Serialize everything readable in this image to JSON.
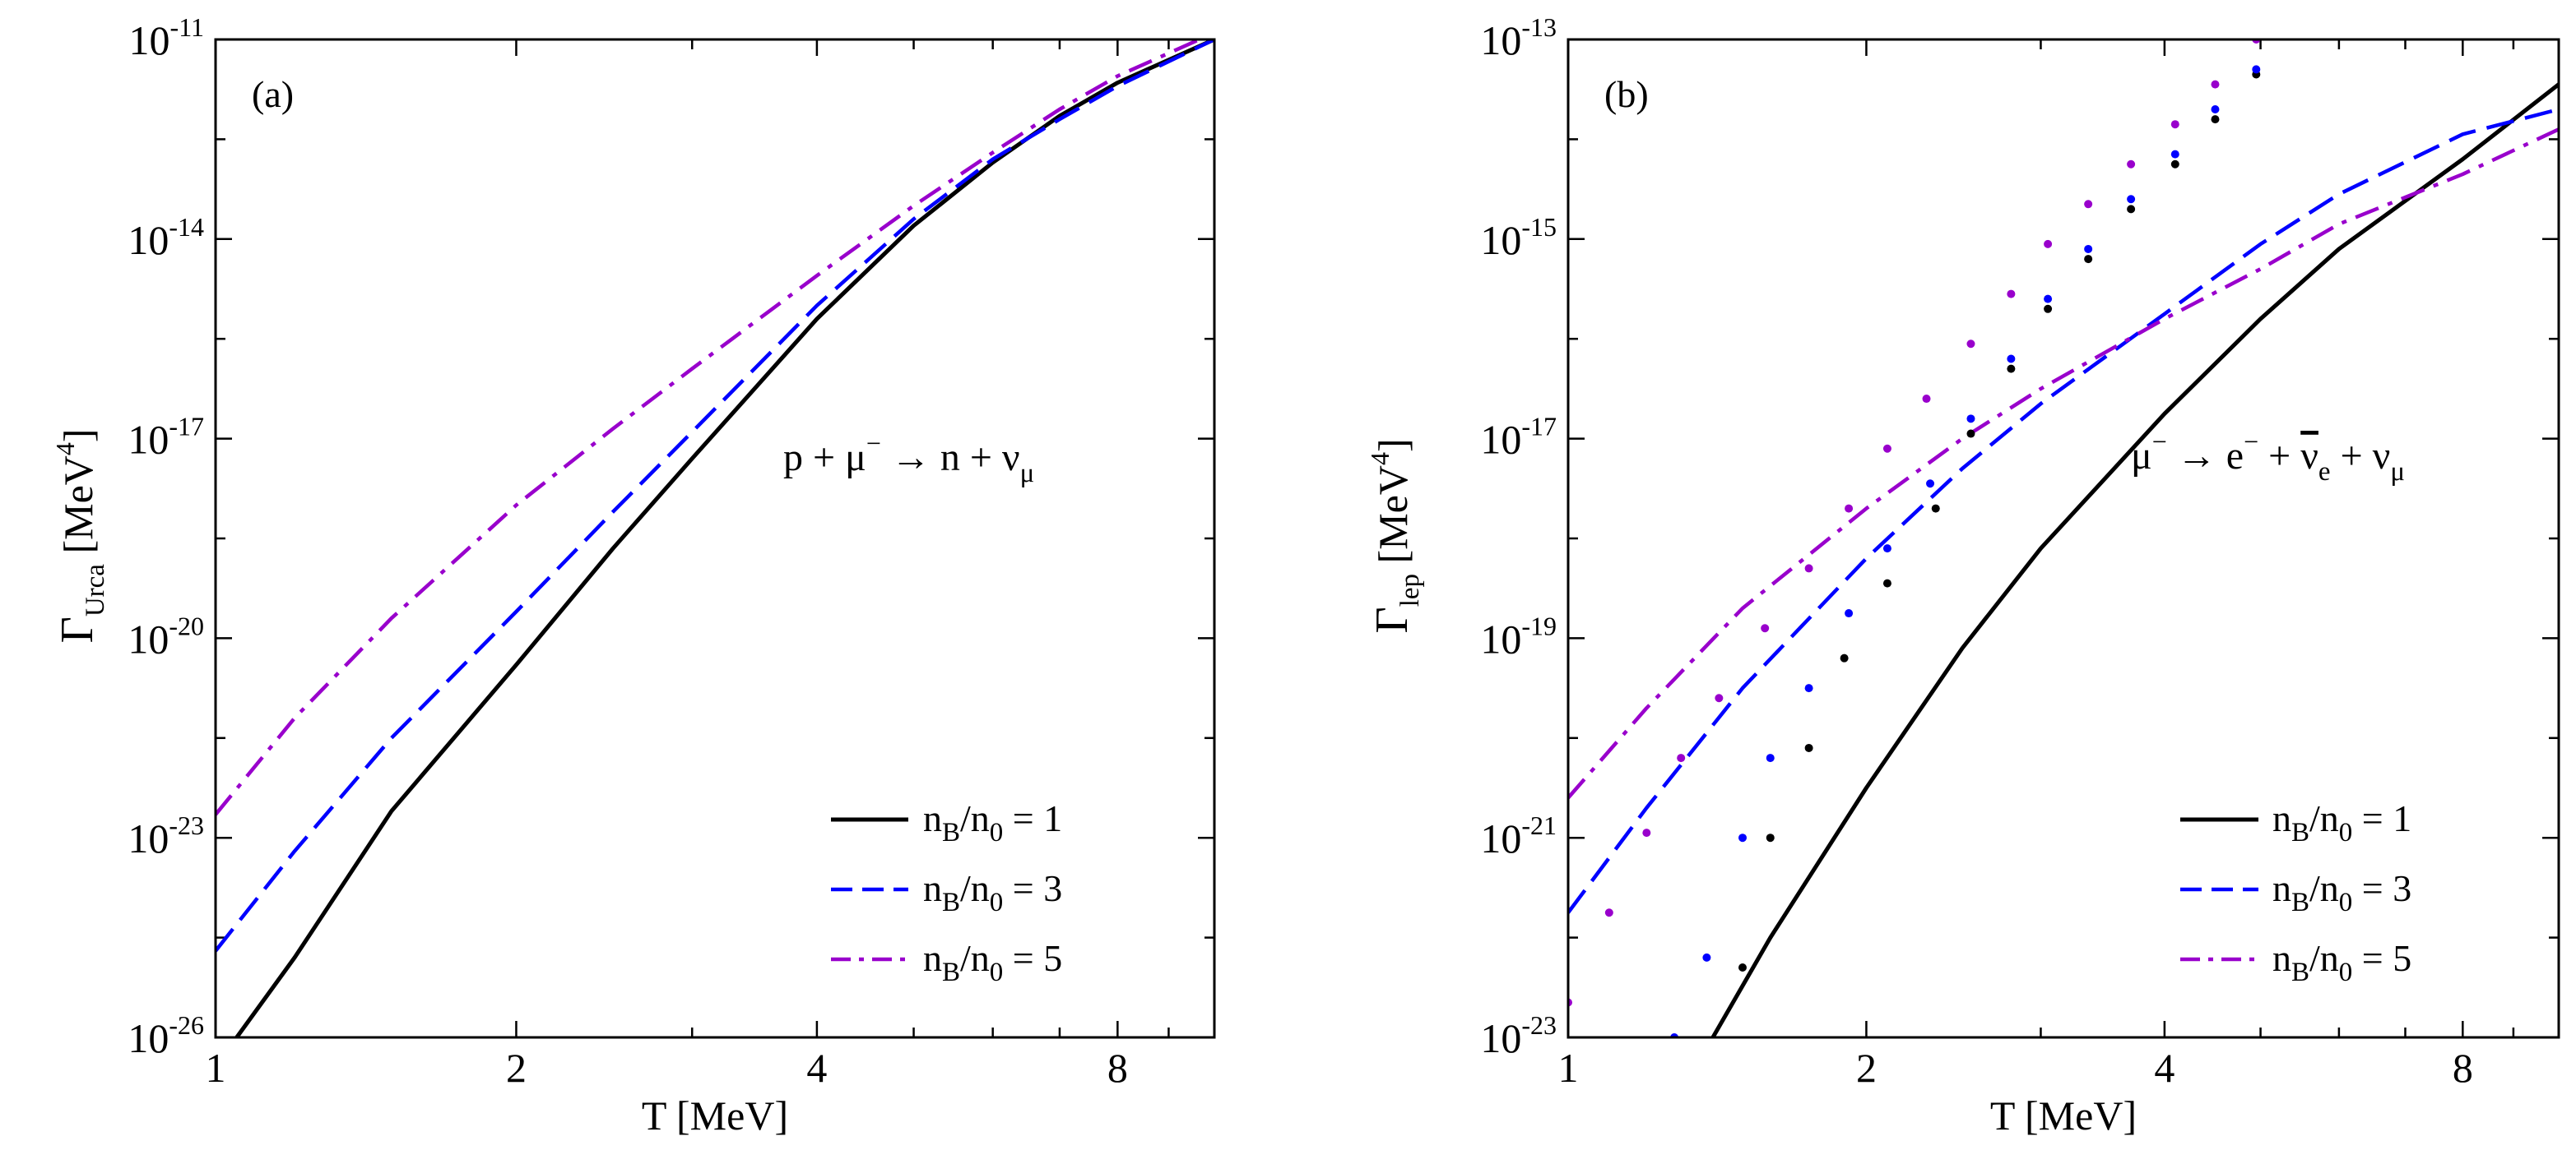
{
  "chart_data": [
    {
      "panel": "(a)",
      "type": "line",
      "title": "",
      "x_scale": "log",
      "y_scale": "log",
      "xlim": [
        1,
        10
      ],
      "ylim_exponent": [
        -26,
        -11
      ],
      "xlabel": "T [MeV]",
      "ylabel": {
        "base": "Γ",
        "sub": "Urca",
        "unit_pre": " [MeV",
        "unit_sup": "4",
        "unit_post": "]"
      },
      "xticks": [
        1,
        2,
        4,
        8
      ],
      "xtick_labels": [
        "1",
        "2",
        "4",
        "8"
      ],
      "yticks_exponent": [
        -26,
        -23,
        -20,
        -17,
        -14,
        -11
      ],
      "ytick_labels": [
        {
          "base": "10",
          "exp": "-26"
        },
        {
          "base": "10",
          "exp": "-23"
        },
        {
          "base": "10",
          "exp": "-20"
        },
        {
          "base": "10",
          "exp": "-17"
        },
        {
          "base": "10",
          "exp": "-14"
        },
        {
          "base": "10",
          "exp": "-11"
        }
      ],
      "annotation": {
        "text_parts": [
          "p + μ",
          "−",
          " → n + ν",
          "μ"
        ]
      },
      "legend_position": "bottom-right",
      "series": [
        {
          "name": "n_B/n_0 = 1",
          "label_parts": [
            "n",
            "B",
            "/n",
            "0",
            " = 1"
          ],
          "color": "#000000",
          "dash": "solid",
          "points": [
            [
              1.05,
              -26.0
            ],
            [
              1.2,
              -24.8
            ],
            [
              1.5,
              -22.6
            ],
            [
              2.0,
              -20.4
            ],
            [
              2.5,
              -18.65
            ],
            [
              3.0,
              -17.3
            ],
            [
              4.0,
              -15.2
            ],
            [
              5.0,
              -13.8
            ],
            [
              6.0,
              -12.85
            ],
            [
              7.0,
              -12.15
            ],
            [
              8.0,
              -11.65
            ],
            [
              10.0,
              -11.0
            ]
          ]
        },
        {
          "name": "n_B/n_0 = 3",
          "label_parts": [
            "n",
            "B",
            "/n",
            "0",
            " = 3"
          ],
          "color": "#0000ff",
          "dash": "dashed",
          "points": [
            [
              1.0,
              -24.7
            ],
            [
              1.2,
              -23.2
            ],
            [
              1.5,
              -21.5
            ],
            [
              2.0,
              -19.6
            ],
            [
              2.5,
              -18.1
            ],
            [
              3.0,
              -16.9
            ],
            [
              4.0,
              -15.0
            ],
            [
              5.0,
              -13.7
            ],
            [
              6.0,
              -12.8
            ],
            [
              7.0,
              -12.2
            ],
            [
              8.0,
              -11.7
            ],
            [
              10.0,
              -11.0
            ]
          ]
        },
        {
          "name": "n_B/n_0 = 5",
          "label_parts": [
            "n",
            "B",
            "/n",
            "0",
            " = 5"
          ],
          "color": "#9900cc",
          "dash": "dashdot",
          "points": [
            [
              1.0,
              -22.65
            ],
            [
              1.2,
              -21.2
            ],
            [
              1.5,
              -19.7
            ],
            [
              2.0,
              -18.0
            ],
            [
              2.5,
              -16.85
            ],
            [
              3.0,
              -15.95
            ],
            [
              4.0,
              -14.55
            ],
            [
              5.0,
              -13.5
            ],
            [
              6.0,
              -12.7
            ],
            [
              7.0,
              -12.05
            ],
            [
              8.0,
              -11.55
            ],
            [
              10.0,
              -10.9
            ]
          ]
        }
      ]
    },
    {
      "panel": "(b)",
      "type": "line",
      "title": "",
      "x_scale": "log",
      "y_scale": "log",
      "xlim": [
        1,
        10
      ],
      "ylim_exponent": [
        -23,
        -13
      ],
      "xlabel": "T [MeV]",
      "ylabel": {
        "base": "Γ",
        "sub": "lep",
        "unit_pre": " [MeV",
        "unit_sup": "4",
        "unit_post": "]"
      },
      "xticks": [
        1,
        2,
        4,
        8
      ],
      "xtick_labels": [
        "1",
        "2",
        "4",
        "8"
      ],
      "yticks_exponent": [
        -23,
        -21,
        -19,
        -17,
        -15,
        -13
      ],
      "ytick_labels": [
        {
          "base": "10",
          "exp": "-23"
        },
        {
          "base": "10",
          "exp": "-21"
        },
        {
          "base": "10",
          "exp": "-19"
        },
        {
          "base": "10",
          "exp": "-17"
        },
        {
          "base": "10",
          "exp": "-15"
        },
        {
          "base": "10",
          "exp": "-13"
        }
      ],
      "annotation": {
        "text_parts": [
          "μ",
          "−",
          " → e",
          "−",
          " + ",
          "ν",
          "e",
          " + ν",
          "μ"
        ]
      },
      "legend_position": "bottom-right",
      "series": [
        {
          "name": "n_B/n_0 = 1",
          "label_parts": [
            "n",
            "B",
            "/n",
            "0",
            " = 1"
          ],
          "color": "#000000",
          "dash": "solid",
          "points": [
            [
              1.4,
              -23.0
            ],
            [
              1.6,
              -22.0
            ],
            [
              2.0,
              -20.5
            ],
            [
              2.5,
              -19.1
            ],
            [
              3.0,
              -18.1
            ],
            [
              4.0,
              -16.75
            ],
            [
              5.0,
              -15.8
            ],
            [
              6.0,
              -15.1
            ],
            [
              8.0,
              -14.2
            ],
            [
              10.0,
              -13.45
            ]
          ]
        },
        {
          "name": "n_B/n_0 = 3",
          "label_parts": [
            "n",
            "B",
            "/n",
            "0",
            " = 3"
          ],
          "color": "#0000ff",
          "dash": "dashed",
          "points": [
            [
              1.0,
              -21.75
            ],
            [
              1.2,
              -20.7
            ],
            [
              1.5,
              -19.5
            ],
            [
              2.0,
              -18.2
            ],
            [
              2.5,
              -17.3
            ],
            [
              3.0,
              -16.65
            ],
            [
              4.0,
              -15.75
            ],
            [
              5.0,
              -15.05
            ],
            [
              6.0,
              -14.55
            ],
            [
              8.0,
              -13.95
            ],
            [
              10.0,
              -13.7
            ]
          ]
        },
        {
          "name": "n_B/n_0 = 5",
          "label_parts": [
            "n",
            "B",
            "/n",
            "0",
            " = 5"
          ],
          "color": "#9900cc",
          "dash": "dashdot",
          "points": [
            [
              1.0,
              -20.6
            ],
            [
              1.2,
              -19.7
            ],
            [
              1.5,
              -18.7
            ],
            [
              2.0,
              -17.7
            ],
            [
              2.5,
              -17.0
            ],
            [
              3.0,
              -16.5
            ],
            [
              4.0,
              -15.8
            ],
            [
              5.0,
              -15.3
            ],
            [
              6.0,
              -14.85
            ],
            [
              8.0,
              -14.35
            ],
            [
              10.0,
              -13.9
            ]
          ]
        }
      ],
      "dotted_series": [
        {
          "name": "n_B/n_0 = 1 (dots)",
          "color": "#000000",
          "points": [
            [
              1.5,
              -22.3
            ],
            [
              1.6,
              -21.0
            ],
            [
              1.75,
              -20.1
            ],
            [
              1.9,
              -19.2
            ],
            [
              2.1,
              -18.45
            ],
            [
              2.35,
              -17.7
            ],
            [
              2.55,
              -16.95
            ],
            [
              2.8,
              -16.3
            ],
            [
              3.05,
              -15.7
            ],
            [
              3.35,
              -15.2
            ],
            [
              3.7,
              -14.7
            ],
            [
              4.1,
              -14.25
            ],
            [
              4.5,
              -13.8
            ],
            [
              4.95,
              -13.35
            ]
          ]
        },
        {
          "name": "n_B/n_0 = 3 (dots)",
          "color": "#0000ff",
          "points": [
            [
              1.28,
              -23.0
            ],
            [
              1.38,
              -22.2
            ],
            [
              1.5,
              -21.0
            ],
            [
              1.6,
              -20.2
            ],
            [
              1.75,
              -19.5
            ],
            [
              1.92,
              -18.75
            ],
            [
              2.1,
              -18.1
            ],
            [
              2.32,
              -17.45
            ],
            [
              2.55,
              -16.8
            ],
            [
              2.8,
              -16.2
            ],
            [
              3.05,
              -15.6
            ],
            [
              3.35,
              -15.1
            ],
            [
              3.7,
              -14.6
            ],
            [
              4.1,
              -14.15
            ],
            [
              4.5,
              -13.7
            ],
            [
              4.95,
              -13.3
            ]
          ]
        },
        {
          "name": "n_B/n_0 = 5 (dots)",
          "color": "#9900cc",
          "points": [
            [
              1.0,
              -22.65
            ],
            [
              1.1,
              -21.75
            ],
            [
              1.2,
              -20.95
            ],
            [
              1.3,
              -20.2
            ],
            [
              1.42,
              -19.6
            ],
            [
              1.58,
              -18.9
            ],
            [
              1.75,
              -18.3
            ],
            [
              1.92,
              -17.7
            ],
            [
              2.1,
              -17.1
            ],
            [
              2.3,
              -16.6
            ],
            [
              2.55,
              -16.05
            ],
            [
              2.8,
              -15.55
            ],
            [
              3.05,
              -15.05
            ],
            [
              3.35,
              -14.65
            ],
            [
              3.7,
              -14.25
            ],
            [
              4.1,
              -13.85
            ],
            [
              4.5,
              -13.45
            ],
            [
              4.95,
              -13.0
            ]
          ]
        }
      ]
    }
  ]
}
